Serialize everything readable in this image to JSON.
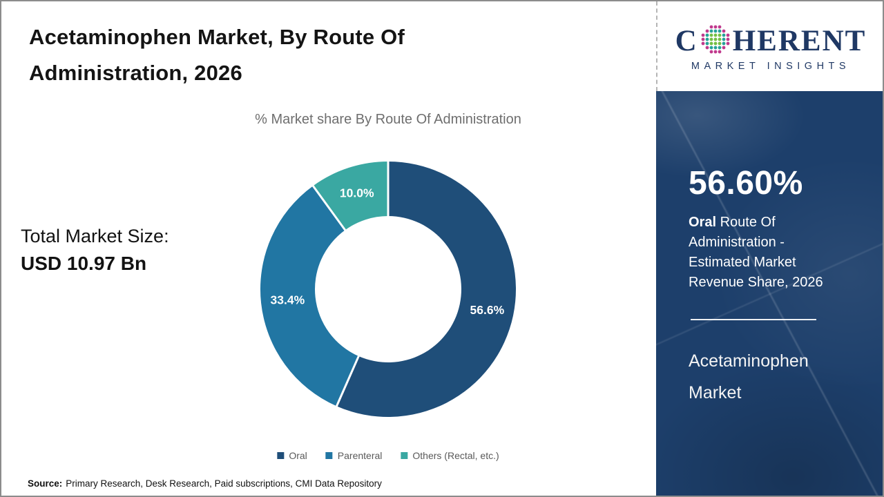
{
  "header": {
    "title": "Acetaminophen Market, By Route Of\nAdministration, 2026"
  },
  "main": {
    "total_market_label": "Total Market Size:",
    "total_market_value": "USD 10.97 Bn",
    "source_label": "Source:",
    "source_text": "Primary Research, Desk Research, Paid subscriptions, CMI Data Repository"
  },
  "chart_data": {
    "type": "pie",
    "variant": "donut",
    "title": "% Market share By Route Of Administration",
    "categories": [
      "Oral",
      "Parenteral",
      "Others (Rectal, etc.)"
    ],
    "values": [
      56.6,
      33.4,
      10.0
    ],
    "labels": [
      "56.6%",
      "33.4%",
      "10.0%"
    ],
    "colors": [
      "#1f4e79",
      "#2176a3",
      "#3aa8a2"
    ],
    "start_angle_deg": 0,
    "direction": "clockwise",
    "inner_radius_ratio": 0.573,
    "legend_position": "bottom"
  },
  "sidebar": {
    "logo": {
      "brand_c": "C",
      "brand_rest": "HERENT",
      "tagline": "MARKET INSIGHTS",
      "globe_icon": "dotted-globe",
      "globe_colors": {
        "outer": "#c0398d",
        "mid": "#26a298",
        "inner": "#74bf44"
      },
      "brand_color": "#1f3864"
    },
    "panel_color": "#1d3f6b",
    "stat_value": "56.60%",
    "stat_desc_bold": "Oral",
    "stat_desc_rest": " Route Of Administration - Estimated Market Revenue Share, 2026",
    "market_name": "Acetaminophen Market"
  }
}
